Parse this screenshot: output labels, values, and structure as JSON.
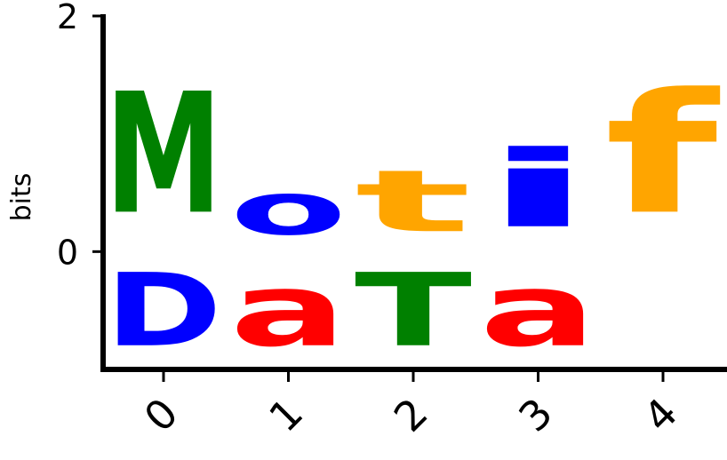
{
  "chart_data": {
    "type": "sequence-logo",
    "ylabel": "bits",
    "ylim": [
      -1,
      2
    ],
    "yticks": [
      "2",
      "0"
    ],
    "xticks": [
      "0",
      "1",
      "2",
      "3",
      "4"
    ],
    "positions": [
      {
        "x": "0",
        "letters": [
          {
            "char": "M",
            "from": 0.0,
            "to": 1.65,
            "color": "#008000"
          },
          {
            "char": "D",
            "from": -1.0,
            "to": 0.0,
            "color": "#0000ff"
          }
        ]
      },
      {
        "x": "1",
        "letters": [
          {
            "char": "o",
            "from": 0.0,
            "to": 0.72,
            "color": "#0000ff"
          },
          {
            "char": "a",
            "from": -1.0,
            "to": 0.0,
            "color": "#ff0000"
          }
        ]
      },
      {
        "x": "2",
        "letters": [
          {
            "char": "t",
            "from": 0.0,
            "to": 0.85,
            "color": "#ffa500"
          },
          {
            "char": "T",
            "from": -1.0,
            "to": 0.0,
            "color": "#008000"
          }
        ]
      },
      {
        "x": "3",
        "letters": [
          {
            "char": "i",
            "from": 0.0,
            "to": 1.05,
            "color": "#0000ff"
          },
          {
            "char": "a",
            "from": -1.0,
            "to": 0.0,
            "color": "#ff0000"
          }
        ]
      },
      {
        "x": "4",
        "letters": [
          {
            "char": "f",
            "from": 0.0,
            "to": 1.65,
            "color": "#ffa500"
          }
        ]
      }
    ]
  }
}
